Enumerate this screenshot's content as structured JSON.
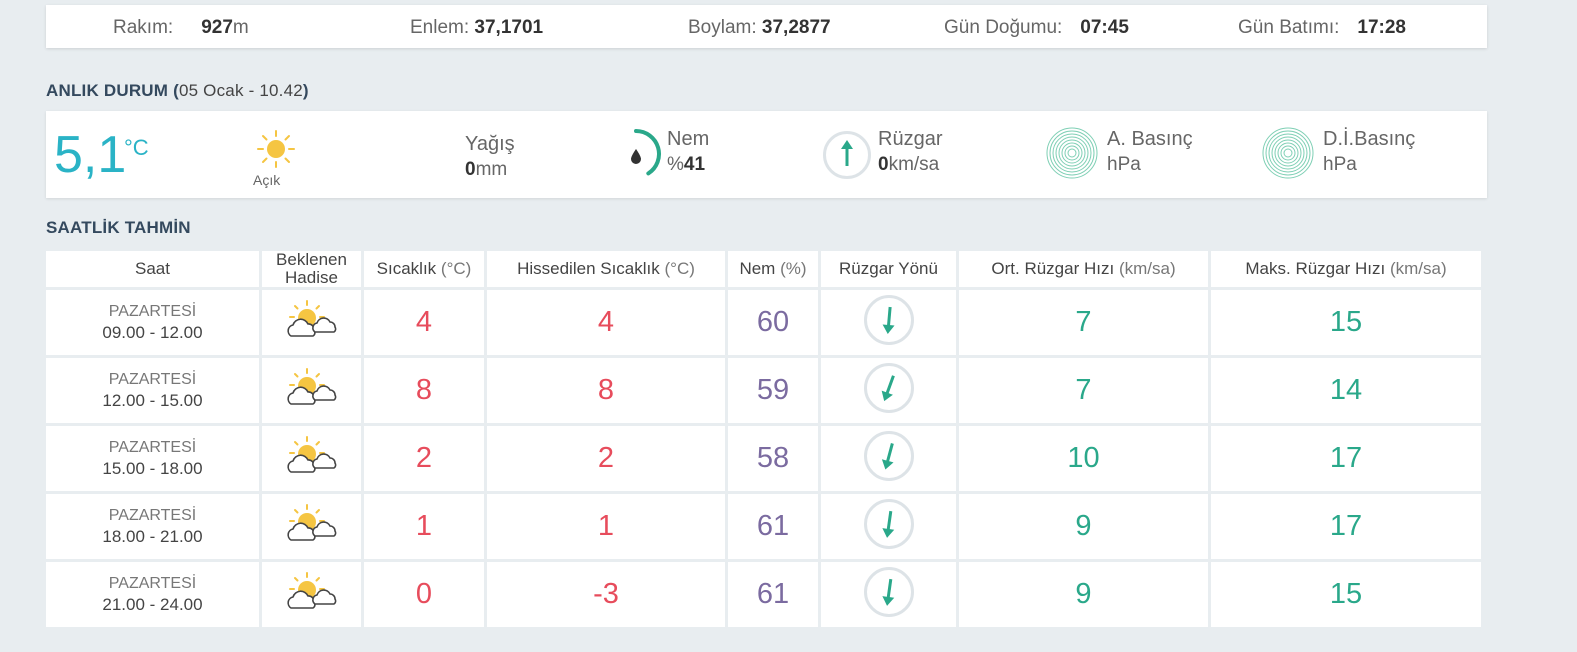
{
  "info": {
    "elevation_label": "Rakım:",
    "elevation_value": "927",
    "elevation_unit": "m",
    "lat_label": "Enlem:",
    "lat_value": "37,1701",
    "lon_label": "Boylam:",
    "lon_value": "37,2877",
    "sunrise_label": "Gün Doğumu:",
    "sunrise_value": "07:45",
    "sunset_label": "Gün Batımı:",
    "sunset_value": "17:28"
  },
  "current": {
    "title": "ANLIK DURUM",
    "date": "05 Ocak - 10.42",
    "temp": "5,1",
    "temp_unit": "°C",
    "sky": "Açık",
    "rain_label": "Yağış",
    "rain_value": "0",
    "rain_unit": "mm",
    "humidity_label": "Nem",
    "humidity_prefix": "%",
    "humidity_value": "41",
    "humidity_fraction": 0.41,
    "wind_label": "Rüzgar",
    "wind_value": "0",
    "wind_unit": "km/sa",
    "pressure_label": "A. Basınç",
    "pressure_unit": "hPa",
    "sea_pressure_label": "D.İ.Basınç",
    "sea_pressure_unit": "hPa",
    "colors": {
      "accent": "#2ab3c6",
      "green": "#2aa88a"
    }
  },
  "forecast": {
    "title": "SAATLİK TAHMİN",
    "headers": {
      "time": "Saat",
      "event_line1": "Beklenen",
      "event_line2": "Hadise",
      "temp": "Sıcaklık",
      "temp_unit": "(°C)",
      "feels": "Hissedilen Sıcaklık",
      "feels_unit": "(°C)",
      "humidity": "Nem",
      "humidity_unit": "(%)",
      "wind_dir": "Rüzgar Yönü",
      "wind_avg": "Ort. Rüzgar Hızı",
      "wind_avg_unit": "(km/sa)",
      "wind_max": "Maks. Rüzgar Hızı",
      "wind_max_unit": "(km/sa)"
    },
    "rows": [
      {
        "day": "PAZARTESİ",
        "hours": "09.00 - 12.00",
        "temp": "4",
        "feels": "4",
        "humidity": "60",
        "wind_deg": 185,
        "wind_avg": "7",
        "wind_max": "15"
      },
      {
        "day": "PAZARTESİ",
        "hours": "12.00 - 15.00",
        "temp": "8",
        "feels": "8",
        "humidity": "59",
        "wind_deg": 200,
        "wind_avg": "7",
        "wind_max": "14"
      },
      {
        "day": "PAZARTESİ",
        "hours": "15.00 - 18.00",
        "temp": "2",
        "feels": "2",
        "humidity": "58",
        "wind_deg": 195,
        "wind_avg": "10",
        "wind_max": "17"
      },
      {
        "day": "PAZARTESİ",
        "hours": "18.00 - 21.00",
        "temp": "1",
        "feels": "1",
        "humidity": "61",
        "wind_deg": 188,
        "wind_avg": "9",
        "wind_max": "17"
      },
      {
        "day": "PAZARTESİ",
        "hours": "21.00 - 24.00",
        "temp": "0",
        "feels": "-3",
        "humidity": "61",
        "wind_deg": 188,
        "wind_avg": "9",
        "wind_max": "15"
      }
    ]
  }
}
